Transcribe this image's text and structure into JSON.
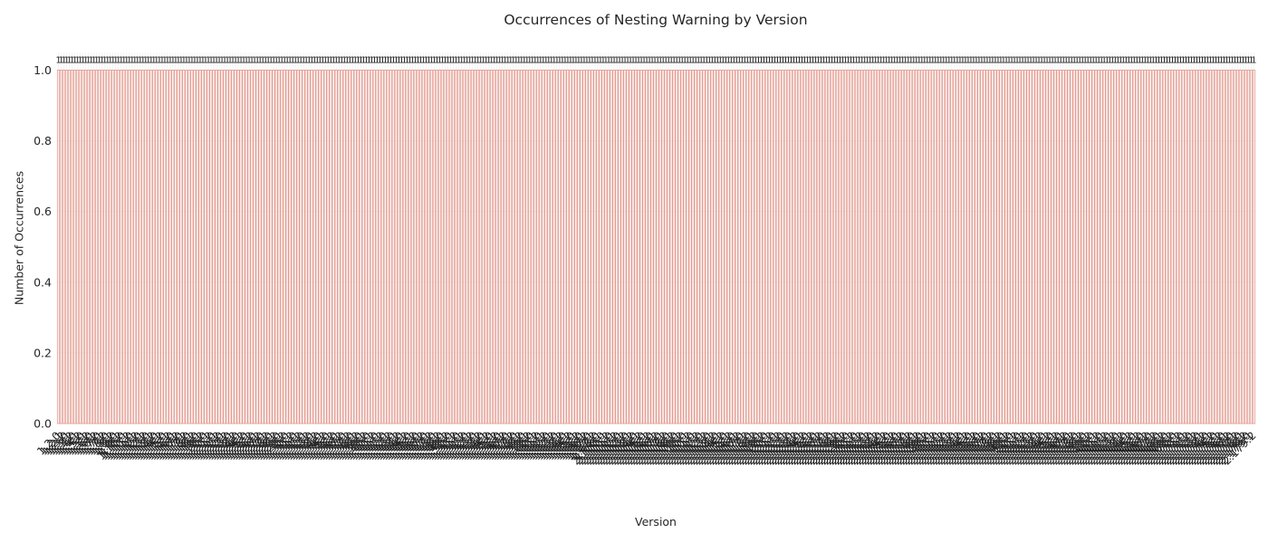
{
  "chart_data": {
    "type": "bar",
    "title": "Occurrences of Nesting Warning by Version",
    "xlabel": "Version",
    "ylabel": "Number of Occurrences",
    "ylim": [
      0,
      1.05
    ],
    "yticks": [
      "0.0",
      "0.2",
      "0.4",
      "0.6",
      "0.8",
      "1.0"
    ],
    "grid": true,
    "bar_color": "#e8998d",
    "bar_value": 1,
    "bar_value_label": "1",
    "categories": [
      "1.2.0",
      "1.2.1",
      "1.2.2",
      "1.3.0",
      "1.3.1",
      "1.3.2",
      "1.4.0",
      "1.4.1",
      "1.4.2",
      "1.5.0",
      "1.5.1",
      "1.5.2",
      "1.6.0",
      "1.6.1",
      "1.6.2",
      "1.7.0",
      "1.7.1",
      "1.7.2",
      "1.8.0",
      "1.8.1",
      "1.8.2",
      "1.9.0",
      "1.9.1",
      "1.9.2",
      "1.10.0",
      "1.10.1",
      "1.10.2",
      "1.11.0",
      "1.11.1",
      "1.11.2",
      "1.12.0",
      "1.12.1",
      "1.12.2",
      "1.13.0",
      "1.13.1",
      "1.13.2",
      "1.14.0",
      "1.14.1",
      "1.14.2",
      "1.15.0",
      "1.15.1",
      "1.15.2",
      "1.16.0",
      "1.16.1",
      "1.16.2",
      "1.17.0",
      "1.17.1",
      "1.17.2",
      "1.18.0",
      "1.18.1",
      "1.18.2",
      "1.19.0",
      "1.19.1",
      "1.19.2",
      "1.20.0",
      "1.20.1",
      "1.20.2",
      "1.21.0",
      "1.21.1",
      "1.21.2",
      "1.22.0",
      "1.22.1",
      "1.22.2",
      "1.23.0",
      "1.23.1",
      "1.23.2",
      "1.24.0",
      "1.24.1",
      "1.24.2",
      "1.25.0",
      "1.25.1",
      "1.25.2",
      "1.26.0",
      "1.26.1",
      "1.26.2",
      "1.27.0",
      "1.27.1",
      "1.27.2",
      "1.28.0",
      "1.28.1",
      "1.28.2",
      "1.29.0",
      "1.29.1",
      "1.29.2",
      "1.30.0",
      "1.30.1",
      "1.30.2",
      "1.31.0",
      "1.31.1",
      "1.31.2",
      "1.32.0",
      "1.32.1",
      "1.32.2",
      "1.33.0",
      "1.33.1",
      "1.33.2",
      "1.34.0",
      "1.34.1",
      "1.34.2",
      "1.35.0",
      "1.35.1",
      "1.35.2",
      "1.36.0",
      "1.36.1",
      "1.36.2",
      "1.37.0",
      "1.37.1",
      "1.37.2",
      "1.38.0",
      "1.38.1",
      "1.38.2",
      "1.39.0",
      "1.39.1",
      "1.39.2",
      "1.40.0",
      "1.40.1",
      "1.40.2",
      "1.41.0",
      "1.41.1",
      "1.41.2",
      "1.42.0",
      "1.42.1",
      "1.42.2",
      "1.43.0",
      "1.43.1",
      "1.43.2",
      "1.44.0",
      "1.44.1",
      "1.44.2",
      "1.45.0",
      "1.45.1",
      "1.45.2",
      "1.46.0",
      "1.46.1",
      "1.46.2",
      "1.47.0",
      "1.47.1",
      "1.47.2",
      "1.48.0",
      "1.48.1",
      "1.48.2",
      "1.49.0",
      "1.49.1",
      "1.49.2",
      "1.50.0",
      "1.50.1",
      "1.50.2",
      "1.51.0",
      "1.51.1",
      "1.51.2",
      "1.52.0",
      "1.52.1",
      "1.52.2",
      "1.53.0",
      "1.53.1",
      "1.53.2",
      "1.54.0",
      "1.54.1",
      "1.54.2",
      "1.55.0",
      "1.55.1",
      "1.55.2",
      "1.56.0",
      "1.56.1",
      "1.56.2",
      "1.57.0",
      "1.57.1",
      "1.57.2",
      "1.58.0",
      "1.58.1",
      "1.58.2",
      "1.59.0",
      "1.59.1",
      "1.59.2",
      "1.60.0",
      "1.60.1",
      "1.60.2",
      "1.61.0",
      "1.61.1",
      "1.61.2",
      "1.62.0",
      "1.62.1",
      "1.62.2",
      "1.63.0",
      "1.63.1",
      "1.63.2",
      "1.64.0",
      "1.64.1",
      "1.64.2",
      "1.65.0",
      "1.65.1",
      "1.65.2",
      "1.66.0",
      "1.66.1",
      "1.66.2",
      "1.67.0",
      "1.67.1",
      "1.67.2",
      "1.68.0",
      "1.68.1",
      "2.100.0",
      "2.100.1",
      "2.100.2",
      "2.101.0",
      "2.101.1",
      "2.101.2",
      "2.102.0",
      "2.102.1",
      "2.102.2",
      "2.103.0",
      "2.103.1",
      "2.103.2",
      "2.104.0",
      "2.104.1",
      "2.104.2",
      "2.105.0",
      "2.105.1",
      "2.105.2",
      "2.106.0",
      "2.106.1",
      "2.106.2",
      "2.107.0",
      "2.107.1",
      "2.107.2",
      "2.108.0",
      "2.108.1",
      "2.108.2",
      "2.109.0",
      "2.109.1",
      "2.109.2",
      "2.110.0",
      "2.110.1",
      "2.110.2",
      "2.111.0",
      "2.111.1",
      "2.111.2",
      "2.112.0",
      "2.112.1",
      "2.112.2",
      "2.113.0",
      "2.113.1",
      "2.113.2",
      "2.114.0",
      "2.114.1",
      "2.114.2",
      "2.115.0",
      "2.115.1",
      "2.115.2",
      "2.116.0",
      "2.116.1",
      "2.116.2",
      "2.117.0",
      "2.117.1",
      "2.117.2",
      "2.118.0",
      "2.118.1",
      "2.118.2",
      "2.119.0",
      "2.119.1",
      "2.119.2",
      "2.120.0",
      "2.120.1",
      "2.120.2",
      "2.121.0",
      "2.121.1",
      "2.121.2",
      "2.122.0",
      "2.122.1",
      "2.122.2",
      "2.123.0",
      "2.123.1",
      "2.123.2",
      "2.124.0",
      "2.124.1",
      "2.124.2",
      "2.125.0",
      "2.125.1",
      "2.125.2",
      "2.126.0",
      "2.126.1",
      "2.126.2",
      "2.127.0",
      "2.127.1",
      "2.127.2",
      "2.128.0",
      "2.128.1",
      "2.128.2",
      "2.129.0",
      "2.129.1",
      "2.129.2",
      "2.130.0",
      "2.130.1",
      "2.130.2",
      "2.131.0",
      "2.131.1",
      "2.131.2",
      "2.132.0",
      "2.132.1",
      "2.132.2",
      "2.133.0",
      "2.133.1",
      "2.133.2",
      "2.134.0",
      "2.134.1",
      "2.134.2",
      "2.135.0",
      "2.135.1",
      "2.135.2",
      "2.136.0",
      "2.136.1",
      "2.136.2",
      "2.137.0",
      "2.137.1",
      "2.137.2",
      "2.138.0",
      "2.138.1",
      "2.138.2",
      "2.139.0",
      "2.139.1",
      "2.139.2",
      "2.140.0",
      "2.140.1",
      "2.140.2",
      "2.141.0",
      "2.141.1",
      "2.141.2",
      "2.142.0",
      "2.142.1",
      "2.142.2",
      "2.143.0",
      "2.143.1",
      "2.143.2",
      "2.144.0",
      "2.144.1",
      "2.144.2",
      "2.145.0",
      "2.145.1",
      "2.145.2",
      "2.146.0",
      "2.146.1",
      "2.146.2",
      "2.147.0",
      "2.147.1",
      "2.147.2",
      "2.148.0",
      "2.148.1",
      "2.148.2",
      "2.149.0",
      "2.149.1",
      "2.149.2",
      "2.150.0",
      "2.150.1",
      "2.150.2",
      "2.151.0",
      "2.151.1",
      "2.151.2",
      "2.152.0",
      "2.152.1",
      "2.152.2",
      "2.153.0",
      "2.153.1",
      "2.153.2",
      "2.154.0",
      "2.154.1",
      "2.154.2",
      "2.155.0",
      "2.155.1",
      "2.155.2",
      "2.156.0",
      "2.156.1",
      "2.156.2",
      "2.157.0",
      "2.157.1",
      "2.157.2",
      "2.158.0",
      "2.158.1",
      "2.158.2",
      "2.159.0",
      "2.159.1",
      "2.159.2",
      "2.160.0",
      "2.160.1",
      "2.160.2",
      "2.161.0",
      "2.161.1",
      "2.161.2",
      "2.162.0",
      "2.162.1",
      "2.162.2",
      "2.163.0",
      "2.163.1",
      "2.163.2",
      "2.164.0",
      "2.164.1",
      "2.164.2",
      "2.165.0",
      "2.165.1",
      "2.165.2",
      "2.166.0",
      "2.166.1",
      "2.166.2",
      "2.167.0",
      "2.167.1",
      "2.167.2",
      "2.168.0",
      "2.168.1",
      "2.168.2",
      "2.169.0",
      "2.169.1",
      "2.169.2",
      "2.170.0",
      "2.170.1",
      "2.170.2",
      "2.171.0",
      "2.171.1",
      "2.171.2",
      "2.172.0",
      "2.172.1",
      "2.172.2",
      "2.173.0",
      "2.173.1",
      "2.173.2",
      "2.174.0",
      "2.174.1",
      "2.174.2",
      "2.175.0",
      "2.175.1",
      "2.175.2",
      "2.176.0",
      "2.176.1",
      "2.176.2",
      "2.177.0",
      "2.177.1",
      "2.177.2",
      "2.178.0",
      "2.178.1",
      "2.178.2",
      "2.179.0",
      "2.179.1",
      "2.179.2"
    ]
  }
}
